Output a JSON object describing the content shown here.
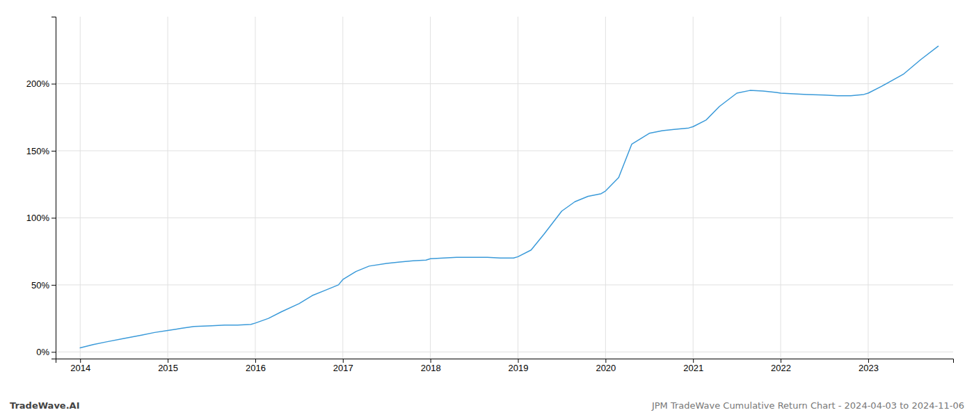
{
  "chart_data": {
    "type": "line",
    "x": [
      2014.0,
      2014.15,
      2014.3,
      2014.5,
      2014.7,
      2014.85,
      2015.0,
      2015.15,
      2015.3,
      2015.5,
      2015.65,
      2015.8,
      2015.95,
      2016.0,
      2016.15,
      2016.3,
      2016.5,
      2016.65,
      2016.8,
      2016.95,
      2017.0,
      2017.15,
      2017.3,
      2017.5,
      2017.65,
      2017.8,
      2017.95,
      2018.0,
      2018.15,
      2018.3,
      2018.5,
      2018.65,
      2018.8,
      2018.95,
      2019.0,
      2019.15,
      2019.3,
      2019.5,
      2019.65,
      2019.8,
      2019.95,
      2020.0,
      2020.15,
      2020.3,
      2020.5,
      2020.65,
      2020.8,
      2020.95,
      2021.0,
      2021.15,
      2021.3,
      2021.5,
      2021.65,
      2021.8,
      2021.95,
      2022.0,
      2022.15,
      2022.3,
      2022.5,
      2022.65,
      2022.8,
      2022.95,
      2023.0,
      2023.15,
      2023.4,
      2023.6,
      2023.8
    ],
    "values": [
      3.0,
      5.5,
      7.5,
      10.0,
      12.5,
      14.5,
      16.0,
      17.5,
      19.0,
      19.5,
      20.0,
      20.0,
      20.5,
      21.5,
      25.0,
      30.0,
      36.0,
      42.0,
      46.0,
      50.0,
      54.0,
      60.0,
      64.0,
      66.0,
      67.0,
      68.0,
      68.5,
      69.5,
      70.0,
      70.5,
      70.5,
      70.5,
      70.0,
      70.0,
      71.0,
      76.0,
      88.0,
      105.0,
      112.0,
      116.0,
      118.0,
      120.0,
      130.0,
      155.0,
      163.0,
      165.0,
      166.0,
      167.0,
      168.0,
      173.0,
      183.0,
      193.0,
      195.0,
      194.5,
      193.5,
      193.0,
      192.5,
      192.0,
      191.5,
      191.0,
      191.0,
      192.0,
      193.0,
      198.0,
      207.0,
      218.0,
      228.0
    ],
    "color": "#3a9ad9",
    "xlim": [
      2013.72,
      2023.97
    ],
    "ylim": [
      -5,
      250
    ],
    "xticks": [
      2014,
      2015,
      2016,
      2017,
      2018,
      2019,
      2020,
      2021,
      2022,
      2023
    ],
    "yticks": [
      {
        "value": 0,
        "label": "0%"
      },
      {
        "value": 50,
        "label": "50%"
      },
      {
        "value": 100,
        "label": "100%"
      },
      {
        "value": 150,
        "label": "150%"
      },
      {
        "value": 200,
        "label": "200%"
      }
    ],
    "grid": true,
    "annotations": [
      "TradeWave.AI",
      "JPM TradeWave Cumulative Return Chart - 2024-04-03 to 2024-11-06"
    ]
  }
}
